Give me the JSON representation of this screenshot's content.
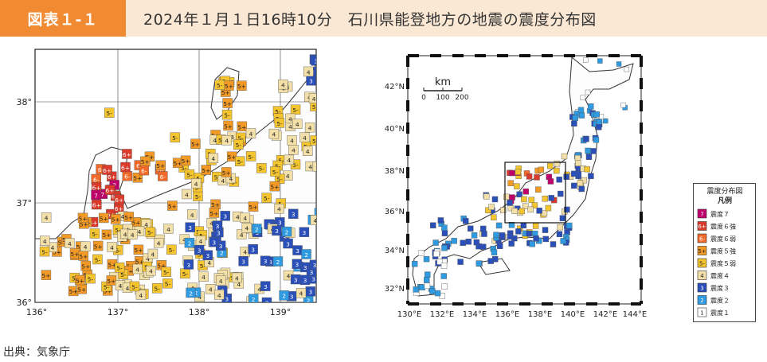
{
  "header": {
    "figure_label": "図表１-１",
    "title": "2024年１月１日16時10分　石川県能登地方の地震の震度分布図"
  },
  "source": "出典：気象庁",
  "left_map": {
    "lat_labels": [
      "38°",
      "37°",
      "36°"
    ],
    "lon_labels": [
      "136°",
      "137°",
      "138°",
      "139°"
    ]
  },
  "right_map": {
    "lat_labels": [
      "42°N",
      "40°N",
      "38°N",
      "36°N",
      "34°N",
      "32°N"
    ],
    "lon_labels": [
      "130°E",
      "132°E",
      "134°E",
      "136°E",
      "138°E",
      "140°E",
      "142°E",
      "144°E"
    ],
    "scale": {
      "unit": "km",
      "ticks": [
        "0",
        "100",
        "200"
      ]
    }
  },
  "legend": {
    "title": "震度分布図",
    "subtitle": "凡例",
    "items": [
      {
        "symbol": "7",
        "label": "震度７",
        "color": "#c0006a"
      },
      {
        "symbol": "6+",
        "label": "震度６強",
        "color": "#d93a2a"
      },
      {
        "symbol": "6-",
        "label": "震度６弱",
        "color": "#f26a2a"
      },
      {
        "symbol": "5+",
        "label": "震度５強",
        "color": "#f39a26"
      },
      {
        "symbol": "5-",
        "label": "震度５弱",
        "color": "#f5c52f"
      },
      {
        "symbol": "4",
        "label": "震度４",
        "color": "#f3e0a8"
      },
      {
        "symbol": "3",
        "label": "震度３",
        "color": "#2a4fb8"
      },
      {
        "symbol": "2",
        "label": "震度２",
        "color": "#2f9ae0"
      },
      {
        "symbol": "1",
        "label": "震度１",
        "color": "#ffffff"
      }
    ]
  }
}
